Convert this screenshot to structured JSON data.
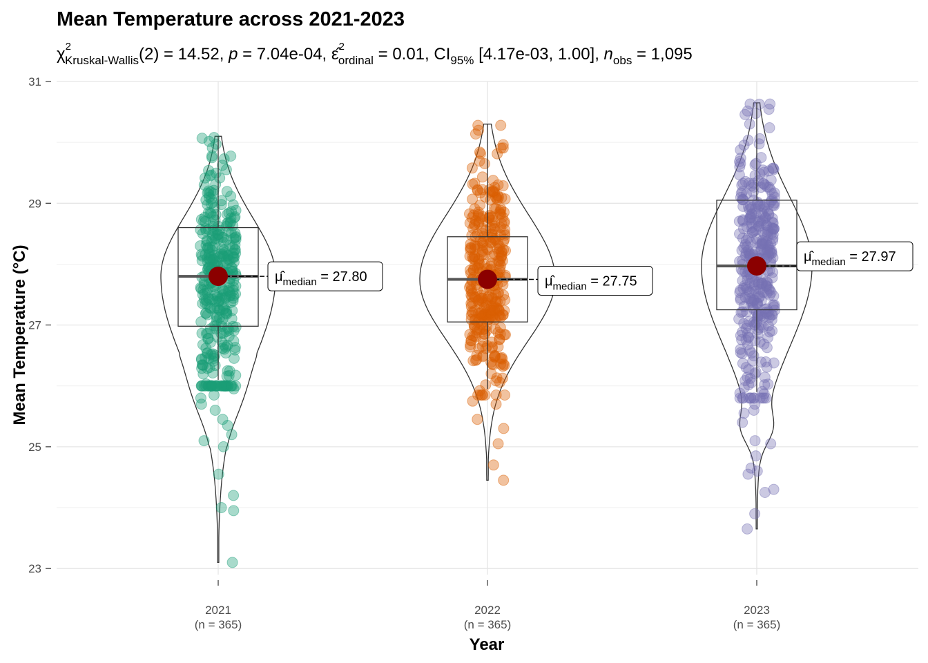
{
  "chart_data": {
    "type": "violin",
    "title": "Mean Temperature across 2021-2023",
    "subtitle": {
      "statistic": "χ²Kruskal-Wallis(2) = 14.52",
      "p_value": "p = 7.04e-04",
      "effect_size": "ε̂²ordinal = 0.01",
      "ci": "CI95% [4.17e-03, 1.00]",
      "n_obs": "nobs = 1,095"
    },
    "xlabel": "Year",
    "ylabel": "Mean Temperature (°C)",
    "ylim": [
      22.9,
      31.0
    ],
    "yticks": [
      23,
      25,
      27,
      29,
      31
    ],
    "grid": true,
    "categories": [
      "2021",
      "2022",
      "2023"
    ],
    "category_counts": [
      "(n = 365)",
      "(n = 365)",
      "(n = 365)"
    ],
    "series": [
      {
        "category": "2021",
        "color": "#1B9E77",
        "median": 27.8,
        "q1": 26.98,
        "q3": 28.6,
        "whisker_low": 26.1,
        "whisker_high": 30.1,
        "min": 23.1,
        "max": 30.1,
        "median_label": "μ̂median = 27.80",
        "median_display": "27.80",
        "outliers": [
          23.1,
          23.95,
          24.0,
          24.2,
          24.55,
          25.0,
          25.1,
          25.2,
          25.35,
          25.45,
          25.6,
          25.7,
          25.8,
          25.85,
          25.95
        ]
      },
      {
        "category": "2022",
        "color": "#D95F02",
        "median": 27.75,
        "q1": 27.05,
        "q3": 28.45,
        "whisker_low": 25.95,
        "whisker_high": 30.3,
        "min": 24.45,
        "max": 30.3,
        "median_label": "μ̂median = 27.75",
        "median_display": "27.75",
        "outliers": [
          24.45,
          24.7,
          25.05,
          25.3,
          25.45,
          25.7,
          25.75
        ]
      },
      {
        "category": "2023",
        "color": "#7570B3",
        "median": 27.97,
        "q1": 27.25,
        "q3": 29.05,
        "whisker_low": 25.9,
        "whisker_high": 30.65,
        "min": 23.65,
        "max": 30.65,
        "median_label": "μ̂median = 27.97",
        "median_display": "27.97",
        "outliers": [
          23.65,
          23.9,
          24.25,
          24.3,
          24.55,
          24.6,
          24.65,
          24.85,
          25.05,
          25.1,
          25.4,
          25.55,
          25.6,
          25.7
        ]
      }
    ],
    "median_point_color": "#8B0000"
  }
}
